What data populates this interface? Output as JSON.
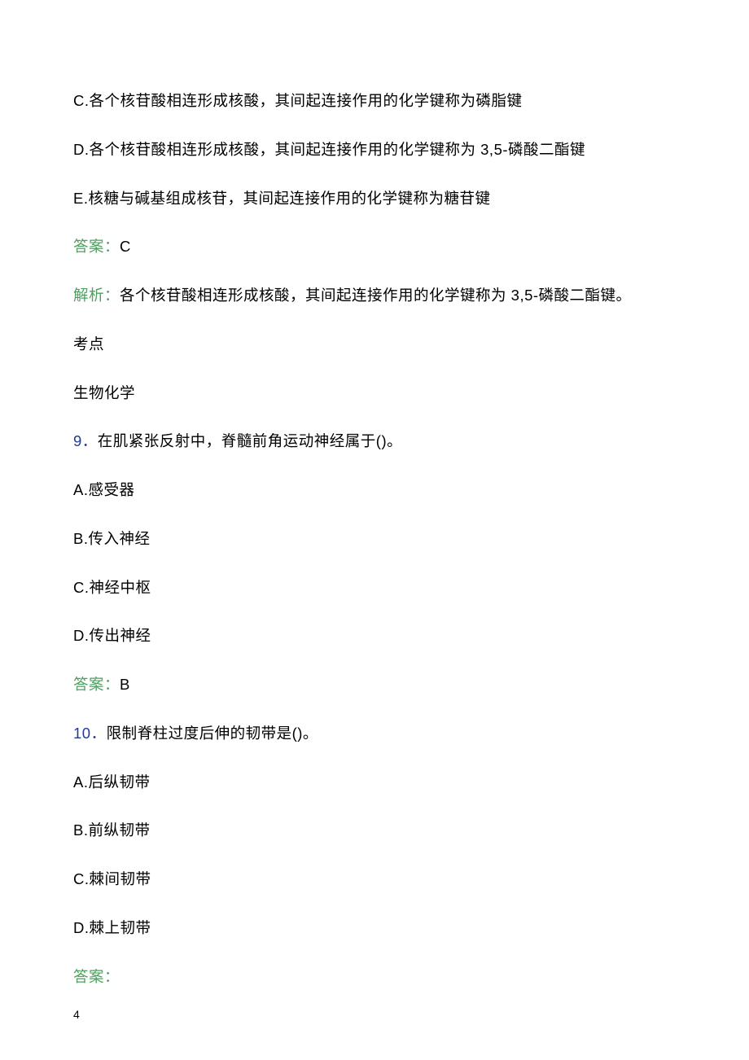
{
  "colors": {
    "text": "#000000",
    "answer_label": "#4ea060",
    "question_number": "#1f3a93",
    "background": "#ffffff"
  },
  "typography": {
    "body_fontsize": 18.5,
    "page_number_fontsize": 14,
    "line_spacing": 32
  },
  "lines": {
    "option_c": "C.各个核苷酸相连形成核酸，其间起连接作用的化学键称为磷脂键",
    "option_d": "D.各个核苷酸相连形成核酸，其间起连接作用的化学键称为 3,5-磷酸二酯键",
    "option_e": "E.核糖与碱基组成核苷，其间起连接作用的化学键称为糖苷键",
    "answer_label": "答案：",
    "answer_value": "C",
    "analysis_label": "解析：",
    "analysis_text": "各个核苷酸相连形成核酸，其间起连接作用的化学键称为 3,5-磷酸二酯键。",
    "topic_label": "考点",
    "topic_value": "生物化学",
    "q9_number": "9．",
    "q9_text": "在肌紧张反射中，脊髓前角运动神经属于()。",
    "q9_option_a": "A.感受器",
    "q9_option_b": "B.传入神经",
    "q9_option_c": "C.神经中枢",
    "q9_option_d": "D.传出神经",
    "q9_answer_value": "B",
    "q10_number": "10．",
    "q10_text": "限制脊柱过度后伸的韧带是()。",
    "q10_option_a": "A.后纵韧带",
    "q10_option_b": "B.前纵韧带",
    "q10_option_c": "C.棘间韧带",
    "q10_option_d": "D.棘上韧带",
    "q10_answer_value": ""
  },
  "page_number": "4"
}
